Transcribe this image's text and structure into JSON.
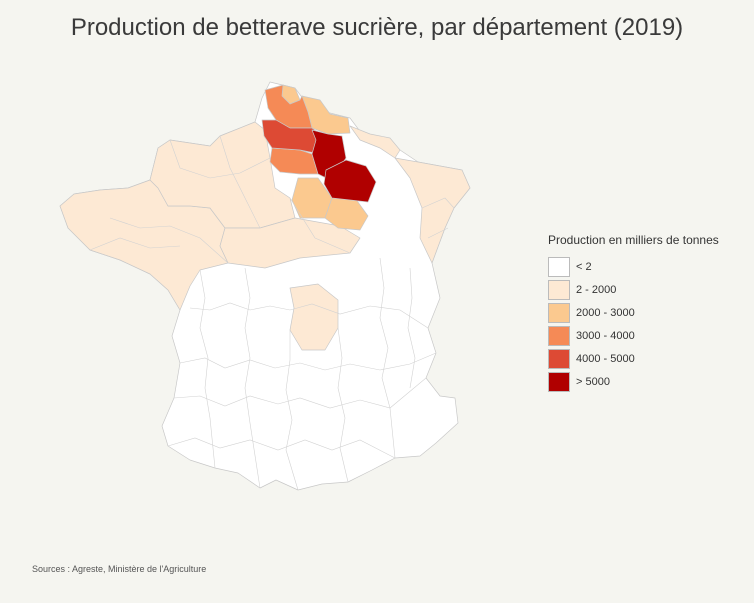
{
  "title": "Production de betterave sucrière, par département (2019)",
  "source": "Sources : Agreste, Ministère de l'Agriculture",
  "legend": {
    "title": "Production en milliers de tonnes",
    "classes": [
      {
        "label": "< 2",
        "color": "#ffffff"
      },
      {
        "label": "2 - 2000",
        "color": "#fde9d4"
      },
      {
        "label": "2000 - 3000",
        "color": "#fbc98f"
      },
      {
        "label": "3000 - 4000",
        "color": "#f58a56"
      },
      {
        "label": "4000 - 5000",
        "color": "#dd4a34"
      },
      {
        "label": "> 5000",
        "color": "#b00000"
      }
    ]
  },
  "regions": [
    {
      "id": "north-west-strip",
      "class": 1
    },
    {
      "id": "normandy",
      "class": 1
    },
    {
      "id": "brittany-loire",
      "class": 1
    },
    {
      "id": "centre",
      "class": 1
    },
    {
      "id": "eastern-departments",
      "class": 1
    },
    {
      "id": "central-enclave",
      "class": 1
    },
    {
      "id": "pas-de-calais",
      "class": 2
    },
    {
      "id": "nord-band",
      "class": 2
    },
    {
      "id": "seine-et-marne-loiret",
      "class": 2
    },
    {
      "id": "aube",
      "class": 2
    },
    {
      "id": "somme-west",
      "class": 3
    },
    {
      "id": "oise",
      "class": 3
    },
    {
      "id": "somme",
      "class": 4
    },
    {
      "id": "aisne",
      "class": 5
    },
    {
      "id": "marne",
      "class": 5
    }
  ]
}
